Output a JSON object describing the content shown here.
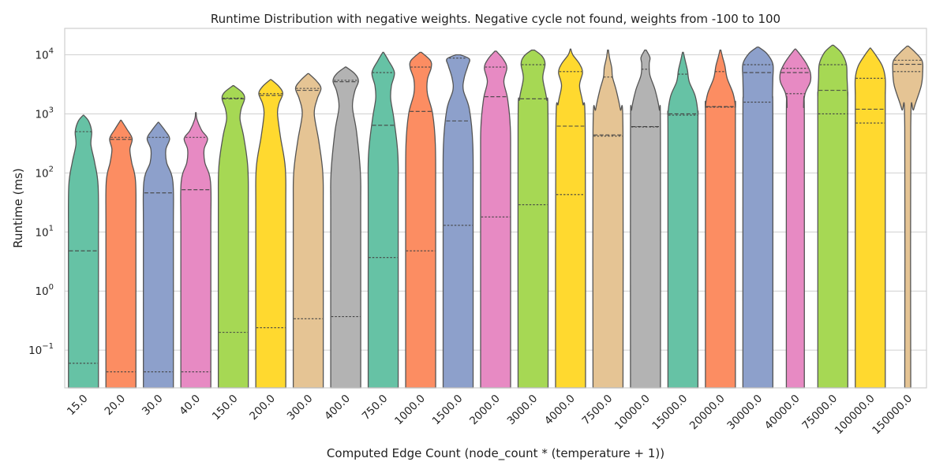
{
  "chart_data": {
    "type": "violin",
    "title": "Runtime Distribution with negative weights. Negative cycle not found, weights from -100 to 100",
    "xlabel": "Computed Edge Count (node_count * (temperature + 1))",
    "ylabel": "Runtime (ms)",
    "yscale": "log",
    "ylim": [
      0.023,
      28000
    ],
    "yticks": [
      {
        "value": 0.1,
        "label": "10",
        "exp": "−1"
      },
      {
        "value": 1,
        "label": "10",
        "exp": "0"
      },
      {
        "value": 10,
        "label": "10",
        "exp": "1"
      },
      {
        "value": 100,
        "label": "10",
        "exp": "2"
      },
      {
        "value": 1000,
        "label": "10",
        "exp": "3"
      },
      {
        "value": 10000,
        "label": "10",
        "exp": "4"
      }
    ],
    "grid": true,
    "palette": [
      "#66c2a5",
      "#fc8d62",
      "#8da0cb",
      "#e78ac3",
      "#a6d854",
      "#ffd92f",
      "#e5c494",
      "#b3b3b3"
    ],
    "categories": [
      "15.0",
      "20.0",
      "30.0",
      "40.0",
      "150.0",
      "200.0",
      "300.0",
      "400.0",
      "750.0",
      "1000.0",
      "1500.0",
      "2000.0",
      "3000.0",
      "4000.0",
      "7500.0",
      "10000.0",
      "15000.0",
      "20000.0",
      "30000.0",
      "40000.0",
      "75000.0",
      "100000.0",
      "150000.0"
    ],
    "violins": [
      {
        "max": 950,
        "q1": 0.06,
        "median": 4.8,
        "q3": 500,
        "shape": [
          [
            950,
            0.02
          ],
          [
            750,
            0.35
          ],
          [
            500,
            0.55
          ],
          [
            300,
            0.5
          ],
          [
            150,
            0.75
          ],
          [
            60,
            0.98
          ],
          [
            8,
            1
          ],
          [
            1,
            1
          ],
          [
            0.023,
            1
          ]
        ]
      },
      {
        "max": 780,
        "q1": 0.043,
        "median": 370,
        "q3": 400,
        "shape": [
          [
            780,
            0.02
          ],
          [
            550,
            0.4
          ],
          [
            380,
            0.75
          ],
          [
            250,
            0.6
          ],
          [
            150,
            0.72
          ],
          [
            70,
            0.98
          ],
          [
            10,
            1
          ],
          [
            0.023,
            1
          ]
        ]
      },
      {
        "max": 720,
        "q1": 0.043,
        "median": 46,
        "q3": 400,
        "shape": [
          [
            720,
            0.02
          ],
          [
            520,
            0.45
          ],
          [
            380,
            0.75
          ],
          [
            250,
            0.5
          ],
          [
            150,
            0.55
          ],
          [
            70,
            0.97
          ],
          [
            10,
            1
          ],
          [
            0.023,
            1
          ]
        ]
      },
      {
        "max": 1050,
        "q1": 0.043,
        "median": 52,
        "q3": 400,
        "shape": [
          [
            1050,
            0.02
          ],
          [
            800,
            0.08
          ],
          [
            520,
            0.4
          ],
          [
            380,
            0.78
          ],
          [
            250,
            0.55
          ],
          [
            150,
            0.6
          ],
          [
            70,
            0.98
          ],
          [
            10,
            1
          ],
          [
            0.023,
            1
          ]
        ]
      },
      {
        "max": 3000,
        "q1": 0.2,
        "median": 1800,
        "q3": 1850,
        "shape": [
          [
            3000,
            0.03
          ],
          [
            2300,
            0.6
          ],
          [
            1800,
            0.75
          ],
          [
            1200,
            0.52
          ],
          [
            800,
            0.45
          ],
          [
            400,
            0.7
          ],
          [
            120,
            0.97
          ],
          [
            20,
            1
          ],
          [
            0.023,
            1
          ]
        ]
      },
      {
        "max": 3800,
        "q1": 0.24,
        "median": 2050,
        "q3": 2200,
        "shape": [
          [
            3800,
            0.03
          ],
          [
            2900,
            0.55
          ],
          [
            2200,
            0.8
          ],
          [
            1500,
            0.55
          ],
          [
            1000,
            0.45
          ],
          [
            400,
            0.65
          ],
          [
            120,
            0.97
          ],
          [
            20,
            1
          ],
          [
            0.023,
            1
          ]
        ]
      },
      {
        "max": 4800,
        "q1": 0.34,
        "median": 2500,
        "q3": 2700,
        "shape": [
          [
            4800,
            0.03
          ],
          [
            3600,
            0.55
          ],
          [
            2700,
            0.85
          ],
          [
            1800,
            0.6
          ],
          [
            1000,
            0.4
          ],
          [
            350,
            0.7
          ],
          [
            100,
            0.97
          ],
          [
            20,
            1
          ],
          [
            0.023,
            1
          ]
        ]
      },
      {
        "max": 6200,
        "q1": 0.37,
        "median": 3500,
        "q3": 3700,
        "shape": [
          [
            6200,
            0.03
          ],
          [
            4800,
            0.6
          ],
          [
            3600,
            0.85
          ],
          [
            2400,
            0.6
          ],
          [
            1300,
            0.45
          ],
          [
            500,
            0.72
          ],
          [
            100,
            0.98
          ],
          [
            20,
            1
          ],
          [
            0.023,
            1
          ]
        ]
      },
      {
        "max": 11000,
        "q1": 3.7,
        "median": 640,
        "q3": 5000,
        "shape": [
          [
            11000,
            0.03
          ],
          [
            8000,
            0.35
          ],
          [
            5000,
            0.75
          ],
          [
            3000,
            0.55
          ],
          [
            1800,
            0.5
          ],
          [
            800,
            0.72
          ],
          [
            200,
            0.98
          ],
          [
            30,
            1
          ],
          [
            0.023,
            1
          ]
        ]
      },
      {
        "max": 11000,
        "q1": 4.8,
        "median": 1100,
        "q3": 6200,
        "shape": [
          [
            11000,
            0.05
          ],
          [
            8000,
            0.65
          ],
          [
            6000,
            0.7
          ],
          [
            3800,
            0.45
          ],
          [
            2200,
            0.45
          ],
          [
            1000,
            0.8
          ],
          [
            300,
            0.98
          ],
          [
            30,
            1
          ],
          [
            0.023,
            1
          ]
        ]
      },
      {
        "max": 10000,
        "q1": 13,
        "median": 760,
        "q3": 8800,
        "shape": [
          [
            10000,
            0.15
          ],
          [
            8500,
            0.75
          ],
          [
            6500,
            0.65
          ],
          [
            4000,
            0.4
          ],
          [
            2500,
            0.35
          ],
          [
            1200,
            0.75
          ],
          [
            300,
            0.98
          ],
          [
            30,
            1
          ],
          [
            0.023,
            1
          ]
        ]
      },
      {
        "max": 11500,
        "q1": 18,
        "median": 1950,
        "q3": 6200,
        "shape": [
          [
            11500,
            0.05
          ],
          [
            8500,
            0.5
          ],
          [
            6000,
            0.75
          ],
          [
            3500,
            0.55
          ],
          [
            1800,
            0.8
          ],
          [
            600,
            0.98
          ],
          [
            100,
            1
          ],
          [
            0.023,
            1
          ]
        ]
      },
      {
        "max": 12000,
        "q1": 29,
        "median": 1800,
        "q3": 6800,
        "shape": [
          [
            12000,
            0.1
          ],
          [
            9500,
            0.6
          ],
          [
            7000,
            0.8
          ],
          [
            4000,
            0.65
          ],
          [
            1800,
            0.9
          ],
          [
            600,
            1
          ],
          [
            0.023,
            1
          ]
        ]
      },
      {
        "max": 12500,
        "q1": 43,
        "median": 620,
        "q3": 5200,
        "shape": [
          [
            12500,
            0.02
          ],
          [
            10000,
            0.15
          ],
          [
            7000,
            0.6
          ],
          [
            5000,
            0.8
          ],
          [
            3000,
            0.6
          ],
          [
            1500,
            0.82
          ],
          [
            500,
            0.98
          ],
          [
            0.023,
            1
          ]
        ]
      },
      {
        "max": 12000,
        "q1": 420,
        "median": 440,
        "q3": 4200,
        "shape": [
          [
            12000,
            0.03
          ],
          [
            9000,
            0.1
          ],
          [
            6000,
            0.25
          ],
          [
            4200,
            0.3
          ],
          [
            2500,
            0.55
          ],
          [
            1200,
            0.82
          ],
          [
            500,
            1
          ],
          [
            0.023,
            1
          ]
        ]
      },
      {
        "max": 12000,
        "q1": 600,
        "median": 610,
        "q3": 5700,
        "shape": [
          [
            12000,
            0.05
          ],
          [
            9000,
            0.3
          ],
          [
            7000,
            0.25
          ],
          [
            4500,
            0.3
          ],
          [
            2500,
            0.65
          ],
          [
            1200,
            0.92
          ],
          [
            500,
            1
          ],
          [
            0.023,
            1
          ]
        ]
      },
      {
        "max": 11000,
        "q1": 950,
        "median": 1000,
        "q3": 4700,
        "shape": [
          [
            11000,
            0.03
          ],
          [
            8000,
            0.15
          ],
          [
            5500,
            0.3
          ],
          [
            3500,
            0.42
          ],
          [
            2000,
            0.82
          ],
          [
            1000,
            1
          ],
          [
            400,
            1
          ],
          [
            0.023,
            1
          ]
        ]
      },
      {
        "max": 12000,
        "q1": 1300,
        "median": 1330,
        "q3": 5200,
        "shape": [
          [
            12000,
            0.03
          ],
          [
            9000,
            0.15
          ],
          [
            6500,
            0.3
          ],
          [
            4000,
            0.45
          ],
          [
            2200,
            0.85
          ],
          [
            1300,
            1
          ],
          [
            600,
            1
          ],
          [
            0.023,
            1
          ]
        ]
      },
      {
        "max": 13500,
        "q1": 1580,
        "median": 5000,
        "q3": 6800,
        "shape": [
          [
            13500,
            0.05
          ],
          [
            10500,
            0.6
          ],
          [
            7000,
            1
          ],
          [
            4000,
            1
          ],
          [
            2000,
            0.98
          ],
          [
            600,
            1
          ],
          [
            0.023,
            1
          ]
        ]
      },
      {
        "max": 12500,
        "q1": 2200,
        "median": 5000,
        "q3": 5900,
        "shape": [
          [
            12500,
            0.03
          ],
          [
            9500,
            0.4
          ],
          [
            7000,
            0.75
          ],
          [
            5000,
            1
          ],
          [
            3500,
            1
          ],
          [
            2200,
            0.65
          ],
          [
            1300,
            0.55
          ],
          [
            800,
            0.6
          ],
          [
            0.023,
            0.6
          ]
        ]
      },
      {
        "max": 14500,
        "q1": 1000,
        "median": 2500,
        "q3": 6800,
        "shape": [
          [
            14500,
            0.05
          ],
          [
            11000,
            0.55
          ],
          [
            7000,
            0.9
          ],
          [
            4000,
            0.95
          ],
          [
            2000,
            1
          ],
          [
            800,
            1
          ],
          [
            0.023,
            1
          ]
        ]
      },
      {
        "max": 13000,
        "q1": 700,
        "median": 1200,
        "q3": 4000,
        "shape": [
          [
            13000,
            0.02
          ],
          [
            10000,
            0.35
          ],
          [
            6500,
            0.8
          ],
          [
            4000,
            1
          ],
          [
            2000,
            1
          ],
          [
            800,
            1
          ],
          [
            0.023,
            1
          ]
        ]
      },
      {
        "max": 14000,
        "q1": 5200,
        "median": 6900,
        "q3": 8100,
        "shape": [
          [
            14000,
            0.05
          ],
          [
            11000,
            0.5
          ],
          [
            8000,
            0.95
          ],
          [
            5500,
            1
          ],
          [
            3000,
            0.9
          ],
          [
            1200,
            0.4
          ],
          [
            600,
            0.2
          ],
          [
            0.023,
            0.2
          ]
        ]
      }
    ]
  }
}
